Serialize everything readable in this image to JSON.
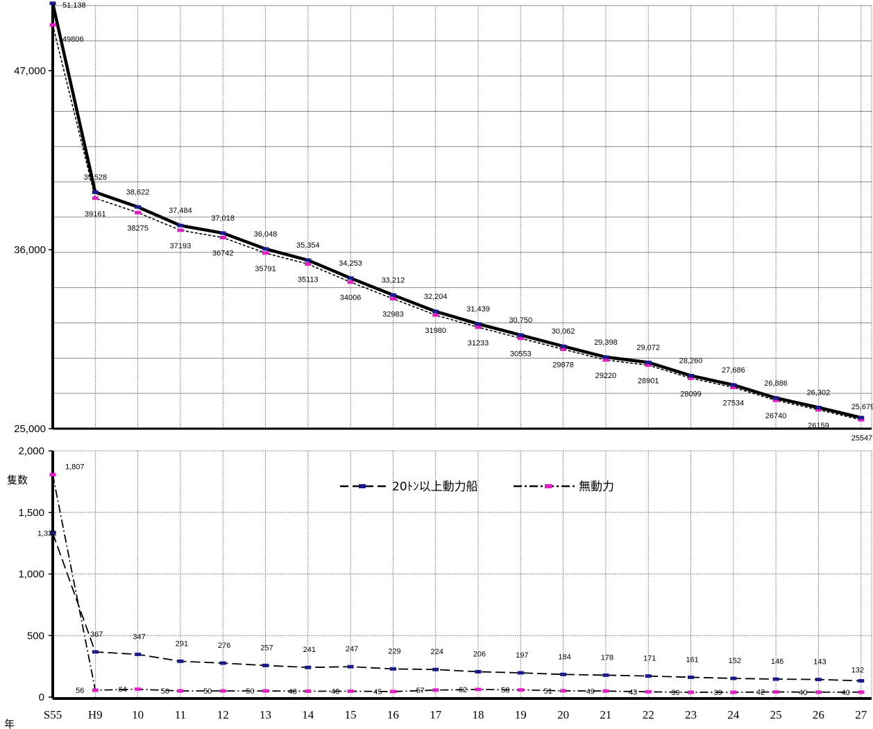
{
  "chart_data": [
    {
      "type": "line",
      "title": "",
      "xlabel": "",
      "ylabel": "",
      "ylim": [
        25000,
        51000
      ],
      "yticks": [
        "25,000",
        "36,000",
        "47,000"
      ],
      "grid": true,
      "series": [
        {
          "name": "",
          "color": "#000000",
          "marker_color": "#1a1a8c",
          "style": "solid-thick",
          "values": [
            51138,
            39528,
            38622,
            37484,
            37018,
            36048,
            35354,
            34253,
            33212,
            32204,
            31439,
            30750,
            30062,
            29398,
            29072,
            28260,
            27686,
            26886,
            26302,
            25679
          ],
          "labels": [
            "51,138",
            "39,528",
            "38,622",
            "37,484",
            "37,018",
            "36,048",
            "35,354",
            "34,253",
            "33,212",
            "32,204",
            "31,439",
            "30,750",
            "30,062",
            "29,398",
            "29,072",
            "28,260",
            "27,686",
            "26,886",
            "26,302",
            "25,679"
          ]
        },
        {
          "name": "",
          "color": "#000000",
          "marker_color": "#e020c0",
          "style": "dashed",
          "values": [
            49806,
            39161,
            38275,
            37193,
            36742,
            35791,
            35113,
            34006,
            32983,
            31980,
            31233,
            30553,
            29878,
            29220,
            28901,
            28099,
            27534,
            26740,
            26159,
            25547
          ],
          "labels": [
            "49806",
            "39161",
            "38275",
            "37193",
            "36742",
            "35791",
            "35113",
            "34006",
            "32983",
            "31980",
            "31233",
            "30553",
            "29878",
            "29220",
            "28901",
            "28099",
            "27534",
            "26740",
            "26159",
            "25547"
          ]
        }
      ]
    },
    {
      "type": "line",
      "title": "",
      "xlabel": "年",
      "ylabel": "隻数",
      "ylim": [
        0,
        2000
      ],
      "yticks": [
        "0",
        "500",
        "1,000",
        "1,500",
        "2,000"
      ],
      "grid": true,
      "legend_position": "top-center",
      "categories": [
        "S55",
        "H9",
        "10",
        "11",
        "12",
        "13",
        "14",
        "15",
        "16",
        "17",
        "18",
        "19",
        "20",
        "21",
        "22",
        "23",
        "24",
        "25",
        "26",
        "27"
      ],
      "series": [
        {
          "name": "20ﾄﾝ以上動力船",
          "color": "#000000",
          "marker_color": "#1a1a8c",
          "style": "long-dash",
          "values": [
            1332,
            367,
            347,
            291,
            276,
            257,
            241,
            247,
            229,
            224,
            206,
            197,
            184,
            178,
            171,
            161,
            152,
            146,
            143,
            132
          ],
          "labels": [
            "1,332",
            "367",
            "347",
            "291",
            "276",
            "257",
            "241",
            "247",
            "229",
            "224",
            "206",
            "197",
            "184",
            "178",
            "171",
            "161",
            "152",
            "146",
            "143",
            "132"
          ]
        },
        {
          "name": "無動力",
          "color": "#000000",
          "marker_color": "#e020c0",
          "style": "dash-dot",
          "values": [
            1807,
            56,
            64,
            50,
            50,
            50,
            48,
            48,
            45,
            57,
            62,
            58,
            51,
            49,
            43,
            39,
            39,
            42,
            40,
            40
          ],
          "labels": [
            "1,807",
            "56",
            "64",
            "50",
            "50",
            "50",
            "48",
            "48",
            "45",
            "57",
            "62",
            "58",
            "51",
            "49",
            "43",
            "39",
            "39",
            "42",
            "40",
            "40"
          ]
        }
      ]
    }
  ]
}
